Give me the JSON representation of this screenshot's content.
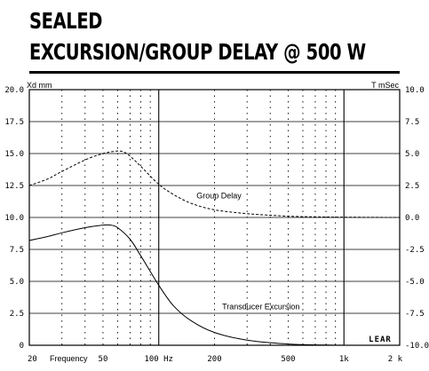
{
  "header": {
    "title_line1": "SEALED",
    "title_line2": "EXCURSION/GROUP DELAY @ 500 W"
  },
  "chart_data": {
    "type": "line",
    "title": "SEALED EXCURSION/GROUP DELAY @ 500 W",
    "xlabel": "Frequency",
    "ylabel_left": "Xd mm",
    "ylabel_right": "T mSec",
    "x_scale": "log",
    "xlim": [
      20,
      2000
    ],
    "ylim_left": [
      0,
      20
    ],
    "ylim_right": [
      -10,
      10
    ],
    "x_tick_labels": [
      {
        "value": 20,
        "label": "20"
      },
      {
        "value": 50,
        "label": "50"
      },
      {
        "value": 100,
        "label": "100 Hz"
      },
      {
        "value": 200,
        "label": "200"
      },
      {
        "value": 500,
        "label": "500"
      },
      {
        "value": 1000,
        "label": "1k"
      },
      {
        "value": 2000,
        "label": "2 k"
      }
    ],
    "y_left_ticks": [
      "0",
      "2.5",
      "5.0",
      "7.5",
      "10.0",
      "12.5",
      "15.0",
      "17.5",
      "20.0"
    ],
    "y_right_ticks": [
      "-10.0",
      "-7.5",
      "-5.0",
      "-2.5",
      "0.0",
      "2.5",
      "5.0",
      "7.5",
      "10.0"
    ],
    "grid": true,
    "series": [
      {
        "name": "Group Delay",
        "axis": "right",
        "style": "dashed",
        "x": [
          20,
          25,
          30,
          40,
          50,
          60,
          65,
          70,
          80,
          100,
          120,
          150,
          200,
          300,
          500,
          700,
          1000,
          2000
        ],
        "y": [
          2.5,
          3.0,
          3.6,
          4.5,
          5.0,
          5.2,
          5.1,
          4.8,
          4.0,
          2.6,
          1.8,
          1.1,
          0.6,
          0.3,
          0.1,
          0.05,
          0.02,
          0.0
        ]
      },
      {
        "name": "Transducer Excursion",
        "axis": "left",
        "style": "solid",
        "x": [
          20,
          25,
          30,
          40,
          50,
          55,
          60,
          70,
          80,
          100,
          120,
          150,
          200,
          300,
          500,
          700,
          1000
        ],
        "y": [
          8.2,
          8.5,
          8.8,
          9.2,
          9.4,
          9.4,
          9.2,
          8.3,
          7.0,
          4.7,
          3.1,
          1.9,
          1.0,
          0.4,
          0.1,
          0.03,
          0.0
        ]
      }
    ],
    "annotations": [
      {
        "text": "Group Delay",
        "x": 160,
        "y_right": 1.5
      },
      {
        "text": "Transducer Excursion",
        "x": 220,
        "y_left": 2.8
      }
    ],
    "logo": "LEAR"
  }
}
